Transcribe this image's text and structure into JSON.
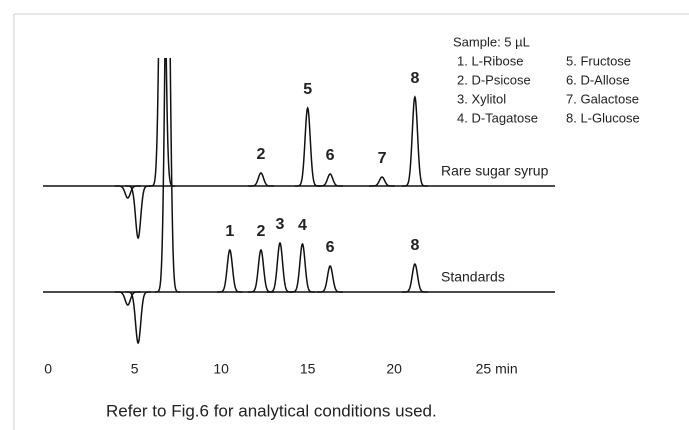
{
  "chart_data": {
    "type": "line",
    "sample": "Sample: 5 µL",
    "peak_names": [
      "1. L-Ribose",
      "2. D-Psicose",
      "3. Xylitol",
      "4. D-Tagatose",
      "5. Fructose",
      "6. D-Allose",
      "7. Galactose",
      "8. L-Glucose"
    ],
    "caption": "Refer to Fig.6 for analytical conditions used.",
    "xlim": [
      -0.3,
      29.3
    ],
    "xticks": [
      0,
      5,
      10,
      15,
      20,
      {
        "value": 25,
        "label": "25 min"
      }
    ],
    "series": [
      {
        "name": "Rare sugar syrup",
        "color": "#111111",
        "x": [
          4.6,
          5.2,
          6.6,
          12.3,
          15.0,
          16.3,
          19.3,
          21.2
        ],
        "values": [
          -12,
          -52,
          400,
          13,
          78,
          12,
          9,
          89
        ],
        "labels": [
          null,
          null,
          null,
          "2",
          "5",
          "6",
          "7",
          "8"
        ]
      },
      {
        "name": "Standards",
        "color": "#111111",
        "x": [
          4.6,
          5.2,
          6.9,
          10.5,
          12.3,
          13.4,
          14.7,
          16.3,
          21.2
        ],
        "values": [
          -13,
          -51,
          400,
          42,
          42,
          49,
          48,
          26,
          28
        ],
        "labels": [
          null,
          null,
          null,
          "1",
          "2",
          "3",
          "4",
          "6",
          "8"
        ]
      }
    ]
  }
}
